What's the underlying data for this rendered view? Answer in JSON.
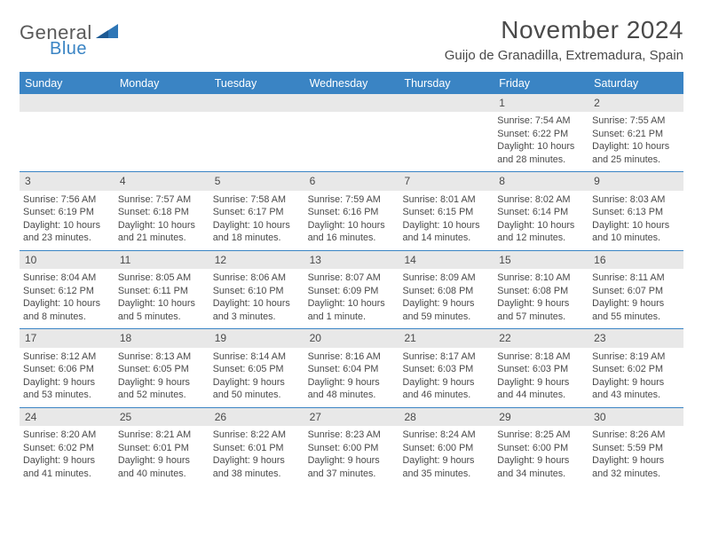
{
  "logo": {
    "word1": "General",
    "word2": "Blue",
    "triangle_color": "#2e76b6"
  },
  "title": "November 2024",
  "location": "Guijo de Granadilla, Extremadura, Spain",
  "colors": {
    "header_bar": "#3a84c4",
    "daynum_bg": "#e8e8e8",
    "text": "#4a4a4a",
    "rule": "#3a84c4"
  },
  "weekdays": [
    "Sunday",
    "Monday",
    "Tuesday",
    "Wednesday",
    "Thursday",
    "Friday",
    "Saturday"
  ],
  "weeks": [
    [
      {
        "n": "",
        "lines": []
      },
      {
        "n": "",
        "lines": []
      },
      {
        "n": "",
        "lines": []
      },
      {
        "n": "",
        "lines": []
      },
      {
        "n": "",
        "lines": []
      },
      {
        "n": "1",
        "lines": [
          "Sunrise: 7:54 AM",
          "Sunset: 6:22 PM",
          "Daylight: 10 hours and 28 minutes."
        ]
      },
      {
        "n": "2",
        "lines": [
          "Sunrise: 7:55 AM",
          "Sunset: 6:21 PM",
          "Daylight: 10 hours and 25 minutes."
        ]
      }
    ],
    [
      {
        "n": "3",
        "lines": [
          "Sunrise: 7:56 AM",
          "Sunset: 6:19 PM",
          "Daylight: 10 hours and 23 minutes."
        ]
      },
      {
        "n": "4",
        "lines": [
          "Sunrise: 7:57 AM",
          "Sunset: 6:18 PM",
          "Daylight: 10 hours and 21 minutes."
        ]
      },
      {
        "n": "5",
        "lines": [
          "Sunrise: 7:58 AM",
          "Sunset: 6:17 PM",
          "Daylight: 10 hours and 18 minutes."
        ]
      },
      {
        "n": "6",
        "lines": [
          "Sunrise: 7:59 AM",
          "Sunset: 6:16 PM",
          "Daylight: 10 hours and 16 minutes."
        ]
      },
      {
        "n": "7",
        "lines": [
          "Sunrise: 8:01 AM",
          "Sunset: 6:15 PM",
          "Daylight: 10 hours and 14 minutes."
        ]
      },
      {
        "n": "8",
        "lines": [
          "Sunrise: 8:02 AM",
          "Sunset: 6:14 PM",
          "Daylight: 10 hours and 12 minutes."
        ]
      },
      {
        "n": "9",
        "lines": [
          "Sunrise: 8:03 AM",
          "Sunset: 6:13 PM",
          "Daylight: 10 hours and 10 minutes."
        ]
      }
    ],
    [
      {
        "n": "10",
        "lines": [
          "Sunrise: 8:04 AM",
          "Sunset: 6:12 PM",
          "Daylight: 10 hours and 8 minutes."
        ]
      },
      {
        "n": "11",
        "lines": [
          "Sunrise: 8:05 AM",
          "Sunset: 6:11 PM",
          "Daylight: 10 hours and 5 minutes."
        ]
      },
      {
        "n": "12",
        "lines": [
          "Sunrise: 8:06 AM",
          "Sunset: 6:10 PM",
          "Daylight: 10 hours and 3 minutes."
        ]
      },
      {
        "n": "13",
        "lines": [
          "Sunrise: 8:07 AM",
          "Sunset: 6:09 PM",
          "Daylight: 10 hours and 1 minute."
        ]
      },
      {
        "n": "14",
        "lines": [
          "Sunrise: 8:09 AM",
          "Sunset: 6:08 PM",
          "Daylight: 9 hours and 59 minutes."
        ]
      },
      {
        "n": "15",
        "lines": [
          "Sunrise: 8:10 AM",
          "Sunset: 6:08 PM",
          "Daylight: 9 hours and 57 minutes."
        ]
      },
      {
        "n": "16",
        "lines": [
          "Sunrise: 8:11 AM",
          "Sunset: 6:07 PM",
          "Daylight: 9 hours and 55 minutes."
        ]
      }
    ],
    [
      {
        "n": "17",
        "lines": [
          "Sunrise: 8:12 AM",
          "Sunset: 6:06 PM",
          "Daylight: 9 hours and 53 minutes."
        ]
      },
      {
        "n": "18",
        "lines": [
          "Sunrise: 8:13 AM",
          "Sunset: 6:05 PM",
          "Daylight: 9 hours and 52 minutes."
        ]
      },
      {
        "n": "19",
        "lines": [
          "Sunrise: 8:14 AM",
          "Sunset: 6:05 PM",
          "Daylight: 9 hours and 50 minutes."
        ]
      },
      {
        "n": "20",
        "lines": [
          "Sunrise: 8:16 AM",
          "Sunset: 6:04 PM",
          "Daylight: 9 hours and 48 minutes."
        ]
      },
      {
        "n": "21",
        "lines": [
          "Sunrise: 8:17 AM",
          "Sunset: 6:03 PM",
          "Daylight: 9 hours and 46 minutes."
        ]
      },
      {
        "n": "22",
        "lines": [
          "Sunrise: 8:18 AM",
          "Sunset: 6:03 PM",
          "Daylight: 9 hours and 44 minutes."
        ]
      },
      {
        "n": "23",
        "lines": [
          "Sunrise: 8:19 AM",
          "Sunset: 6:02 PM",
          "Daylight: 9 hours and 43 minutes."
        ]
      }
    ],
    [
      {
        "n": "24",
        "lines": [
          "Sunrise: 8:20 AM",
          "Sunset: 6:02 PM",
          "Daylight: 9 hours and 41 minutes."
        ]
      },
      {
        "n": "25",
        "lines": [
          "Sunrise: 8:21 AM",
          "Sunset: 6:01 PM",
          "Daylight: 9 hours and 40 minutes."
        ]
      },
      {
        "n": "26",
        "lines": [
          "Sunrise: 8:22 AM",
          "Sunset: 6:01 PM",
          "Daylight: 9 hours and 38 minutes."
        ]
      },
      {
        "n": "27",
        "lines": [
          "Sunrise: 8:23 AM",
          "Sunset: 6:00 PM",
          "Daylight: 9 hours and 37 minutes."
        ]
      },
      {
        "n": "28",
        "lines": [
          "Sunrise: 8:24 AM",
          "Sunset: 6:00 PM",
          "Daylight: 9 hours and 35 minutes."
        ]
      },
      {
        "n": "29",
        "lines": [
          "Sunrise: 8:25 AM",
          "Sunset: 6:00 PM",
          "Daylight: 9 hours and 34 minutes."
        ]
      },
      {
        "n": "30",
        "lines": [
          "Sunrise: 8:26 AM",
          "Sunset: 5:59 PM",
          "Daylight: 9 hours and 32 minutes."
        ]
      }
    ]
  ]
}
